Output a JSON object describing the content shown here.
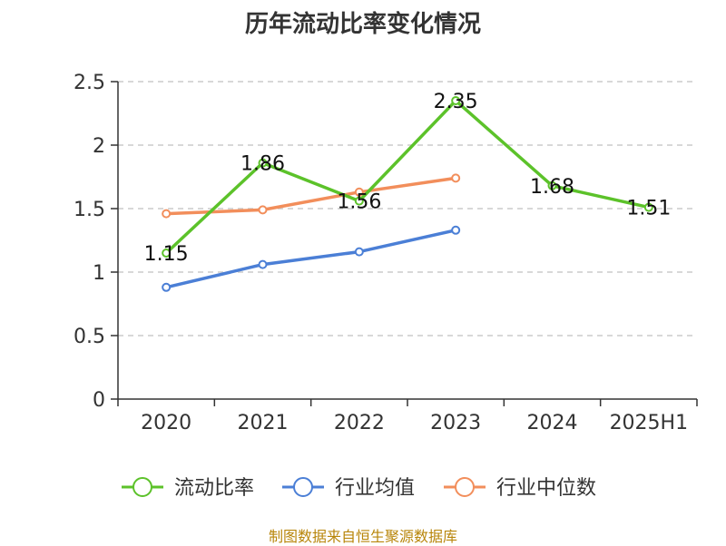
{
  "chart_data": {
    "type": "line",
    "title": "历年流动比率变化情况",
    "categories": [
      "2020",
      "2021",
      "2022",
      "2023",
      "2024",
      "2025H1"
    ],
    "ylim": [
      0,
      2.5
    ],
    "yticks": [
      "0",
      "0.5",
      "1",
      "1.5",
      "2",
      "2.5"
    ],
    "ytick_values": [
      0,
      0.5,
      1,
      1.5,
      2,
      2.5
    ],
    "grid": true,
    "legend_position": "bottom",
    "series": [
      {
        "name": "流动比率",
        "color": "#5cc22a",
        "values": [
          1.15,
          1.86,
          1.56,
          2.35,
          1.68,
          1.51
        ],
        "labels": [
          "1.15",
          "1.86",
          "1.56",
          "2.35",
          "1.68",
          "1.51"
        ]
      },
      {
        "name": "行业均值",
        "color": "#4b7fd6",
        "values": [
          0.88,
          1.06,
          1.16,
          1.33,
          null,
          null
        ]
      },
      {
        "name": "行业中位数",
        "color": "#f28e5b",
        "values": [
          1.46,
          1.49,
          1.63,
          1.74,
          null,
          null
        ]
      }
    ]
  },
  "source": "制图数据来自恒生聚源数据库"
}
